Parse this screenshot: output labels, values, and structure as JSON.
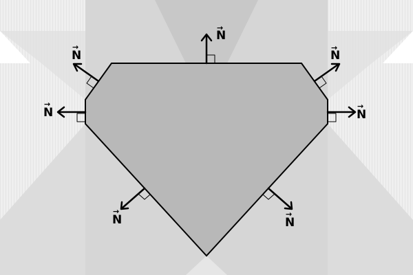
{
  "diagram": {
    "normal_label": "N",
    "vector_mark": "→",
    "normals": [
      {
        "id": "top",
        "label": "N"
      },
      {
        "id": "upper-right",
        "label": "N"
      },
      {
        "id": "right",
        "label": "N"
      },
      {
        "id": "lower-right",
        "label": "N"
      },
      {
        "id": "lower-left",
        "label": "N"
      },
      {
        "id": "left",
        "label": "N"
      },
      {
        "id": "upper-left",
        "label": "N"
      }
    ],
    "colors": {
      "polygon_fill": "#b8b8b8",
      "outline": "#000000",
      "background_light": "#f0f0f0",
      "band": "#cfcfcf",
      "wedge": "#dcdcdc"
    }
  }
}
